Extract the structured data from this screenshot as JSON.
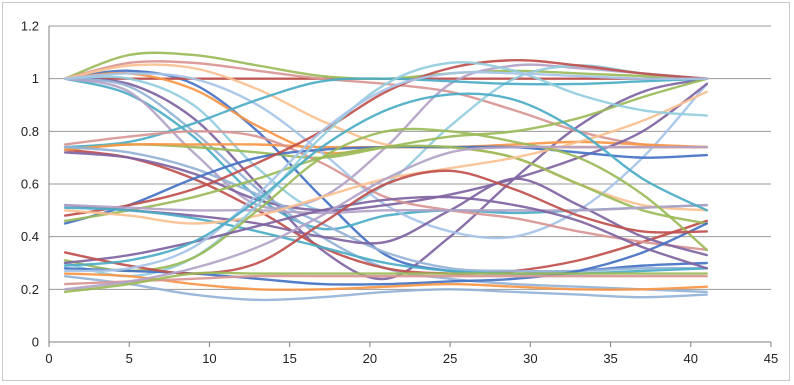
{
  "chart_data": {
    "type": "line",
    "title": "",
    "xlabel": "",
    "ylabel": "",
    "xlim": [
      0,
      45
    ],
    "ylim": [
      0,
      1.2
    ],
    "x_ticks": [
      "0",
      "5",
      "10",
      "15",
      "20",
      "25",
      "30",
      "35",
      "40",
      "45"
    ],
    "y_ticks": [
      "0",
      "0.2",
      "0.4",
      "0.6",
      "0.8",
      "1",
      "1.2"
    ],
    "grid": "horizontal",
    "legend": "none",
    "x": [
      1,
      5,
      9,
      13,
      17,
      21,
      25,
      29,
      33,
      37,
      41
    ],
    "series": [
      {
        "color": "#4472c4",
        "values": [
          1.0,
          1.03,
          0.98,
          0.8,
          0.55,
          0.33,
          0.27,
          0.26,
          0.27,
          0.29,
          0.3
        ]
      },
      {
        "color": "#c0504d",
        "values": [
          1.0,
          1.0,
          1.0,
          1.0,
          1.0,
          1.0,
          1.0,
          1.0,
          1.0,
          1.0,
          1.0
        ]
      },
      {
        "color": "#9bbb59",
        "values": [
          1.0,
          1.09,
          1.09,
          1.05,
          1.01,
          1.0,
          1.02,
          1.03,
          1.02,
          1.01,
          1.0
        ]
      },
      {
        "color": "#8064a2",
        "values": [
          1.0,
          0.98,
          0.85,
          0.6,
          0.35,
          0.24,
          0.4,
          0.62,
          0.82,
          0.95,
          1.0
        ]
      },
      {
        "color": "#4bacc6",
        "values": [
          1.0,
          0.94,
          0.78,
          0.55,
          0.43,
          0.48,
          0.5,
          0.49,
          0.5,
          0.51,
          0.52
        ]
      },
      {
        "color": "#f79646",
        "values": [
          1.0,
          1.02,
          0.96,
          0.82,
          0.72,
          0.74,
          0.74,
          0.74,
          0.74,
          0.74,
          0.74
        ]
      },
      {
        "color": "#95b3d7",
        "values": [
          1.0,
          0.97,
          0.8,
          0.58,
          0.4,
          0.28,
          0.24,
          0.22,
          0.21,
          0.2,
          0.19
        ]
      },
      {
        "color": "#d99694",
        "values": [
          1.0,
          1.06,
          1.06,
          1.03,
          1.0,
          0.98,
          0.95,
          0.88,
          0.8,
          0.75,
          0.74
        ]
      },
      {
        "color": "#b3a2c7",
        "values": [
          1.0,
          0.95,
          0.72,
          0.52,
          0.55,
          0.74,
          0.98,
          1.05,
          1.04,
          1.02,
          1.0
        ]
      },
      {
        "color": "#93cddd",
        "values": [
          1.0,
          1.0,
          0.9,
          0.66,
          0.5,
          0.6,
          0.82,
          1.0,
          1.05,
          1.02,
          1.0
        ]
      },
      {
        "color": "#fac090",
        "values": [
          1.0,
          1.05,
          1.04,
          0.96,
          0.84,
          0.75,
          0.74,
          0.7,
          0.6,
          0.52,
          0.5
        ]
      },
      {
        "color": "#a6c4e8",
        "values": [
          1.0,
          1.02,
          1.0,
          0.9,
          0.72,
          0.52,
          0.42,
          0.4,
          0.5,
          0.7,
          0.98
        ]
      },
      {
        "color": "#c0504d",
        "values": [
          0.73,
          0.7,
          0.62,
          0.5,
          0.36,
          0.28,
          0.26,
          0.27,
          0.31,
          0.38,
          0.46
        ]
      },
      {
        "color": "#4bacc6",
        "values": [
          0.74,
          0.76,
          0.83,
          0.92,
          0.99,
          1.0,
          0.99,
          0.98,
          0.98,
          0.99,
          1.0
        ]
      },
      {
        "color": "#9bbb59",
        "values": [
          0.73,
          0.75,
          0.74,
          0.72,
          0.7,
          0.74,
          0.78,
          0.8,
          0.85,
          0.93,
          1.0
        ]
      },
      {
        "color": "#f79646",
        "values": [
          0.73,
          0.75,
          0.75,
          0.75,
          0.74,
          0.74,
          0.74,
          0.75,
          0.76,
          0.75,
          0.74
        ]
      },
      {
        "color": "#8064a2",
        "values": [
          0.72,
          0.7,
          0.64,
          0.54,
          0.5,
          0.52,
          0.56,
          0.62,
          0.7,
          0.8,
          0.98
        ]
      },
      {
        "color": "#d99694",
        "values": [
          0.75,
          0.78,
          0.8,
          0.78,
          0.68,
          0.55,
          0.5,
          0.47,
          0.42,
          0.38,
          0.35
        ]
      },
      {
        "color": "#95b3d7",
        "values": [
          0.74,
          0.72,
          0.66,
          0.56,
          0.45,
          0.34,
          0.28,
          0.27,
          0.27,
          0.28,
          0.28
        ]
      },
      {
        "color": "#4472c4",
        "values": [
          0.45,
          0.52,
          0.62,
          0.7,
          0.73,
          0.74,
          0.74,
          0.74,
          0.72,
          0.7,
          0.71
        ]
      },
      {
        "color": "#c0504d",
        "values": [
          0.48,
          0.52,
          0.58,
          0.68,
          0.8,
          0.95,
          1.04,
          1.07,
          1.05,
          1.02,
          1.0
        ]
      },
      {
        "color": "#9bbb59",
        "values": [
          0.46,
          0.5,
          0.55,
          0.62,
          0.7,
          0.74,
          0.74,
          0.7,
          0.6,
          0.5,
          0.45
        ]
      },
      {
        "color": "#8064a2",
        "values": [
          0.52,
          0.5,
          0.48,
          0.45,
          0.4,
          0.38,
          0.5,
          0.62,
          0.52,
          0.4,
          0.33
        ]
      },
      {
        "color": "#b3a2c7",
        "values": [
          0.52,
          0.51,
          0.5,
          0.5,
          0.49,
          0.5,
          0.5,
          0.5,
          0.5,
          0.51,
          0.52
        ]
      },
      {
        "color": "#4bacc6",
        "values": [
          0.51,
          0.5,
          0.47,
          0.42,
          0.36,
          0.3,
          0.27,
          0.26,
          0.26,
          0.27,
          0.28
        ]
      },
      {
        "color": "#fac090",
        "values": [
          0.5,
          0.48,
          0.45,
          0.48,
          0.55,
          0.62,
          0.66,
          0.7,
          0.76,
          0.84,
          0.95
        ]
      },
      {
        "color": "#93cddd",
        "values": [
          0.3,
          0.25,
          0.32,
          0.52,
          0.78,
          0.98,
          1.06,
          1.03,
          0.94,
          0.88,
          0.86
        ]
      },
      {
        "color": "#9bbb59",
        "values": [
          0.31,
          0.27,
          0.32,
          0.5,
          0.7,
          0.8,
          0.8,
          0.76,
          0.7,
          0.56,
          0.35
        ]
      },
      {
        "color": "#4472c4",
        "values": [
          0.28,
          0.27,
          0.26,
          0.24,
          0.22,
          0.22,
          0.23,
          0.24,
          0.27,
          0.34,
          0.45
        ]
      },
      {
        "color": "#8064a2",
        "values": [
          0.3,
          0.33,
          0.38,
          0.44,
          0.5,
          0.54,
          0.55,
          0.52,
          0.46,
          0.36,
          0.28
        ]
      },
      {
        "color": "#f79646",
        "values": [
          0.26,
          0.25,
          0.22,
          0.2,
          0.2,
          0.21,
          0.22,
          0.21,
          0.2,
          0.2,
          0.21
        ]
      },
      {
        "color": "#95b3d7",
        "values": [
          0.25,
          0.22,
          0.18,
          0.16,
          0.17,
          0.19,
          0.2,
          0.19,
          0.18,
          0.17,
          0.18
        ]
      },
      {
        "color": "#c0504d",
        "values": [
          0.34,
          0.29,
          0.26,
          0.3,
          0.45,
          0.6,
          0.65,
          0.58,
          0.48,
          0.42,
          0.42
        ]
      },
      {
        "color": "#d99694",
        "values": [
          0.22,
          0.23,
          0.24,
          0.25,
          0.25,
          0.25,
          0.25,
          0.25,
          0.25,
          0.25,
          0.25
        ]
      },
      {
        "color": "#b3a2c7",
        "values": [
          0.2,
          0.23,
          0.28,
          0.36,
          0.48,
          0.62,
          0.72,
          0.74,
          0.74,
          0.74,
          0.74
        ]
      },
      {
        "color": "#a6c4e8",
        "values": [
          0.27,
          0.28,
          0.36,
          0.56,
          0.8,
          0.96,
          1.02,
          1.02,
          1.01,
          1.0,
          1.0
        ]
      },
      {
        "color": "#9bbb59",
        "values": [
          0.19,
          0.22,
          0.26,
          0.26,
          0.26,
          0.26,
          0.26,
          0.26,
          0.26,
          0.26,
          0.26
        ]
      },
      {
        "color": "#4bacc6",
        "values": [
          0.29,
          0.31,
          0.38,
          0.54,
          0.74,
          0.88,
          0.94,
          0.92,
          0.8,
          0.62,
          0.5
        ]
      }
    ]
  }
}
